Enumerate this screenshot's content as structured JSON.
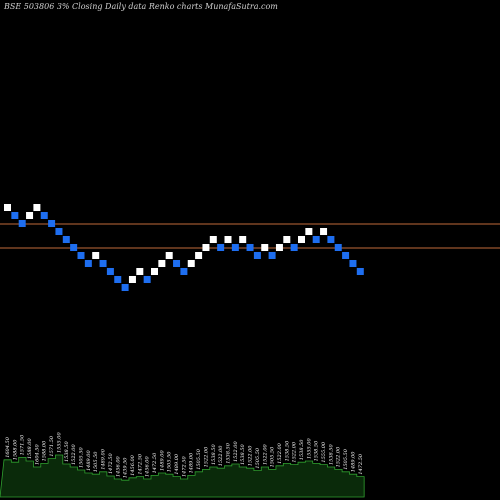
{
  "chart_data": {
    "type": "renko",
    "title": "BSE 503806  3% Closing Daily data Renko  charts MunafaSutra.com",
    "bricks": [
      {
        "value": 1604.5,
        "dir": "up"
      },
      {
        "value": 1588,
        "dir": "down"
      },
      {
        "value": 1571.5,
        "dir": "down"
      },
      {
        "value": 1588,
        "dir": "up"
      },
      {
        "value": 1604.5,
        "dir": "up"
      },
      {
        "value": 1588,
        "dir": "down"
      },
      {
        "value": 1571.5,
        "dir": "down"
      },
      {
        "value": 1555,
        "dir": "down"
      },
      {
        "value": 1538.5,
        "dir": "down"
      },
      {
        "value": 1522,
        "dir": "down"
      },
      {
        "value": 1505.5,
        "dir": "down"
      },
      {
        "value": 1489,
        "dir": "down"
      },
      {
        "value": 1505.5,
        "dir": "up"
      },
      {
        "value": 1489,
        "dir": "down"
      },
      {
        "value": 1472.5,
        "dir": "down"
      },
      {
        "value": 1456,
        "dir": "down"
      },
      {
        "value": 1439.5,
        "dir": "down"
      },
      {
        "value": 1456,
        "dir": "up"
      },
      {
        "value": 1472.5,
        "dir": "up"
      },
      {
        "value": 1456,
        "dir": "down"
      },
      {
        "value": 1472.5,
        "dir": "up"
      },
      {
        "value": 1489,
        "dir": "up"
      },
      {
        "value": 1505.5,
        "dir": "up"
      },
      {
        "value": 1489,
        "dir": "down"
      },
      {
        "value": 1472.5,
        "dir": "down"
      },
      {
        "value": 1489,
        "dir": "up"
      },
      {
        "value": 1505.5,
        "dir": "up"
      },
      {
        "value": 1522,
        "dir": "up"
      },
      {
        "value": 1538.5,
        "dir": "up"
      },
      {
        "value": 1522,
        "dir": "down"
      },
      {
        "value": 1538.5,
        "dir": "up"
      },
      {
        "value": 1522,
        "dir": "down"
      },
      {
        "value": 1538.5,
        "dir": "up"
      },
      {
        "value": 1522,
        "dir": "down"
      },
      {
        "value": 1505.5,
        "dir": "down"
      },
      {
        "value": 1522,
        "dir": "up"
      },
      {
        "value": 1505.5,
        "dir": "down"
      },
      {
        "value": 1522,
        "dir": "up"
      },
      {
        "value": 1538.5,
        "dir": "up"
      },
      {
        "value": 1522,
        "dir": "down"
      },
      {
        "value": 1538.5,
        "dir": "up"
      },
      {
        "value": 1555,
        "dir": "up"
      },
      {
        "value": 1538.5,
        "dir": "down"
      },
      {
        "value": 1555,
        "dir": "up"
      },
      {
        "value": 1538.5,
        "dir": "down"
      },
      {
        "value": 1522,
        "dir": "down"
      },
      {
        "value": 1505.5,
        "dir": "down"
      },
      {
        "value": 1489,
        "dir": "down"
      },
      {
        "value": 1472.5,
        "dir": "down"
      }
    ],
    "reference_lines": [
      1571.5,
      1522
    ],
    "volume_labels": [
      "1604.50",
      "1588.00",
      "1571.50",
      "1588.00",
      "1604.50",
      "1588.00",
      "1571.50",
      "1555.00",
      "1538.50",
      "1522.00",
      "1505.50",
      "1489.00",
      "1505.50",
      "1489.00",
      "1472.50",
      "1456.00",
      "1439.50",
      "1456.00",
      "1472.50",
      "1456.00",
      "1472.50",
      "1489.00",
      "1505.50",
      "1489.00",
      "1472.50",
      "1489.00",
      "1505.50",
      "1522.00",
      "1538.50",
      "1522.00",
      "1538.50",
      "1522.00",
      "1538.50",
      "1522.00",
      "1505.50",
      "1522.00",
      "1505.50",
      "1522.00",
      "1538.50",
      "1522.00",
      "1538.50",
      "1555.00",
      "1538.50",
      "1555.00",
      "1538.50",
      "1522.00",
      "1505.50",
      "1489.00",
      "1472.50"
    ],
    "volume_heights": [
      0.62,
      0.58,
      0.66,
      0.6,
      0.5,
      0.56,
      0.64,
      0.7,
      0.55,
      0.5,
      0.45,
      0.4,
      0.38,
      0.42,
      0.35,
      0.3,
      0.28,
      0.32,
      0.34,
      0.3,
      0.36,
      0.4,
      0.38,
      0.34,
      0.3,
      0.36,
      0.42,
      0.46,
      0.5,
      0.48,
      0.52,
      0.55,
      0.5,
      0.48,
      0.44,
      0.5,
      0.46,
      0.52,
      0.56,
      0.54,
      0.58,
      0.6,
      0.56,
      0.54,
      0.5,
      0.46,
      0.42,
      0.38,
      0.34
    ],
    "colors": {
      "up": "#ffffff",
      "down": "#1e6ef0",
      "line": "#c06a3a",
      "volume": "#0a2a0a",
      "volume_edge": "#2fa02f"
    }
  }
}
